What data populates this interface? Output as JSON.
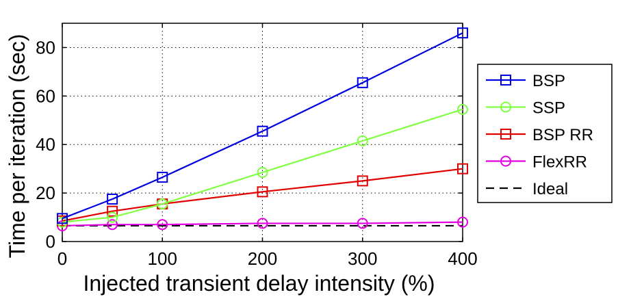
{
  "chart_data": {
    "type": "line",
    "title": "",
    "xlabel": "Injected transient delay intensity (%)",
    "ylabel": "Time per iteration (sec)",
    "xlim": [
      0,
      400
    ],
    "ylim": [
      0,
      90
    ],
    "xticks": [
      0,
      100,
      200,
      300,
      400
    ],
    "yticks": [
      0,
      20,
      40,
      60,
      80
    ],
    "grid": true,
    "legend_position": "right",
    "series": [
      {
        "name": "BSP",
        "color": "#0000e0",
        "marker": "square",
        "dash": "solid",
        "x": [
          0,
          50,
          100,
          200,
          300,
          400
        ],
        "y": [
          9.5,
          17.5,
          26.5,
          45.5,
          65.5,
          86
        ]
      },
      {
        "name": "SSP",
        "color": "#80ff40",
        "marker": "circle",
        "dash": "solid",
        "x": [
          0,
          50,
          100,
          200,
          300,
          400
        ],
        "y": [
          8,
          10,
          15.5,
          28.5,
          41.5,
          54.5
        ]
      },
      {
        "name": "BSP RR",
        "color": "#e00000",
        "marker": "square",
        "dash": "solid",
        "x": [
          0,
          50,
          100,
          200,
          300,
          400
        ],
        "y": [
          8.5,
          12.5,
          15.5,
          20.5,
          25,
          30
        ]
      },
      {
        "name": "FlexRR",
        "color": "#e000e0",
        "marker": "circle",
        "dash": "solid",
        "x": [
          0,
          50,
          100,
          200,
          300,
          400
        ],
        "y": [
          6.5,
          7,
          7,
          7.5,
          7.5,
          8
        ]
      },
      {
        "name": "Ideal",
        "color": "#000000",
        "marker": "none",
        "dash": "dashed",
        "x": [
          0,
          400
        ],
        "y": [
          6.5,
          6.5
        ]
      }
    ]
  }
}
